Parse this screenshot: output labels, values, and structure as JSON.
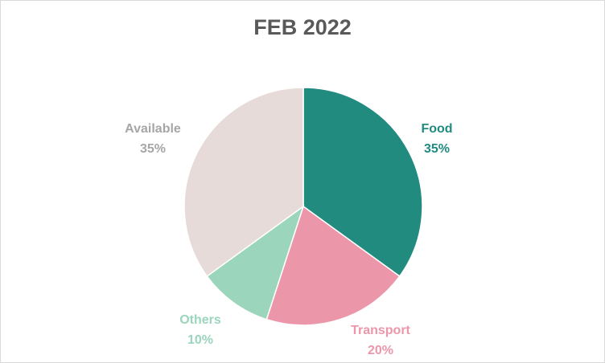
{
  "chart_data": {
    "type": "pie",
    "title": "FEB 2022",
    "categories": [
      "Food",
      "Transport",
      "Others",
      "Available"
    ],
    "values": [
      35,
      20,
      10,
      35
    ],
    "value_labels": [
      "35%",
      "20%",
      "10%",
      "35%"
    ],
    "colors": [
      "#218b80",
      "#ec96aa",
      "#9ad5bc",
      "#e6dbd9"
    ],
    "label_colors": [
      "#218b80",
      "#ec96aa",
      "#9ad5bc",
      "#a6a6a6"
    ],
    "start_angle_deg": 0,
    "direction": "clockwise",
    "legend": "none"
  }
}
